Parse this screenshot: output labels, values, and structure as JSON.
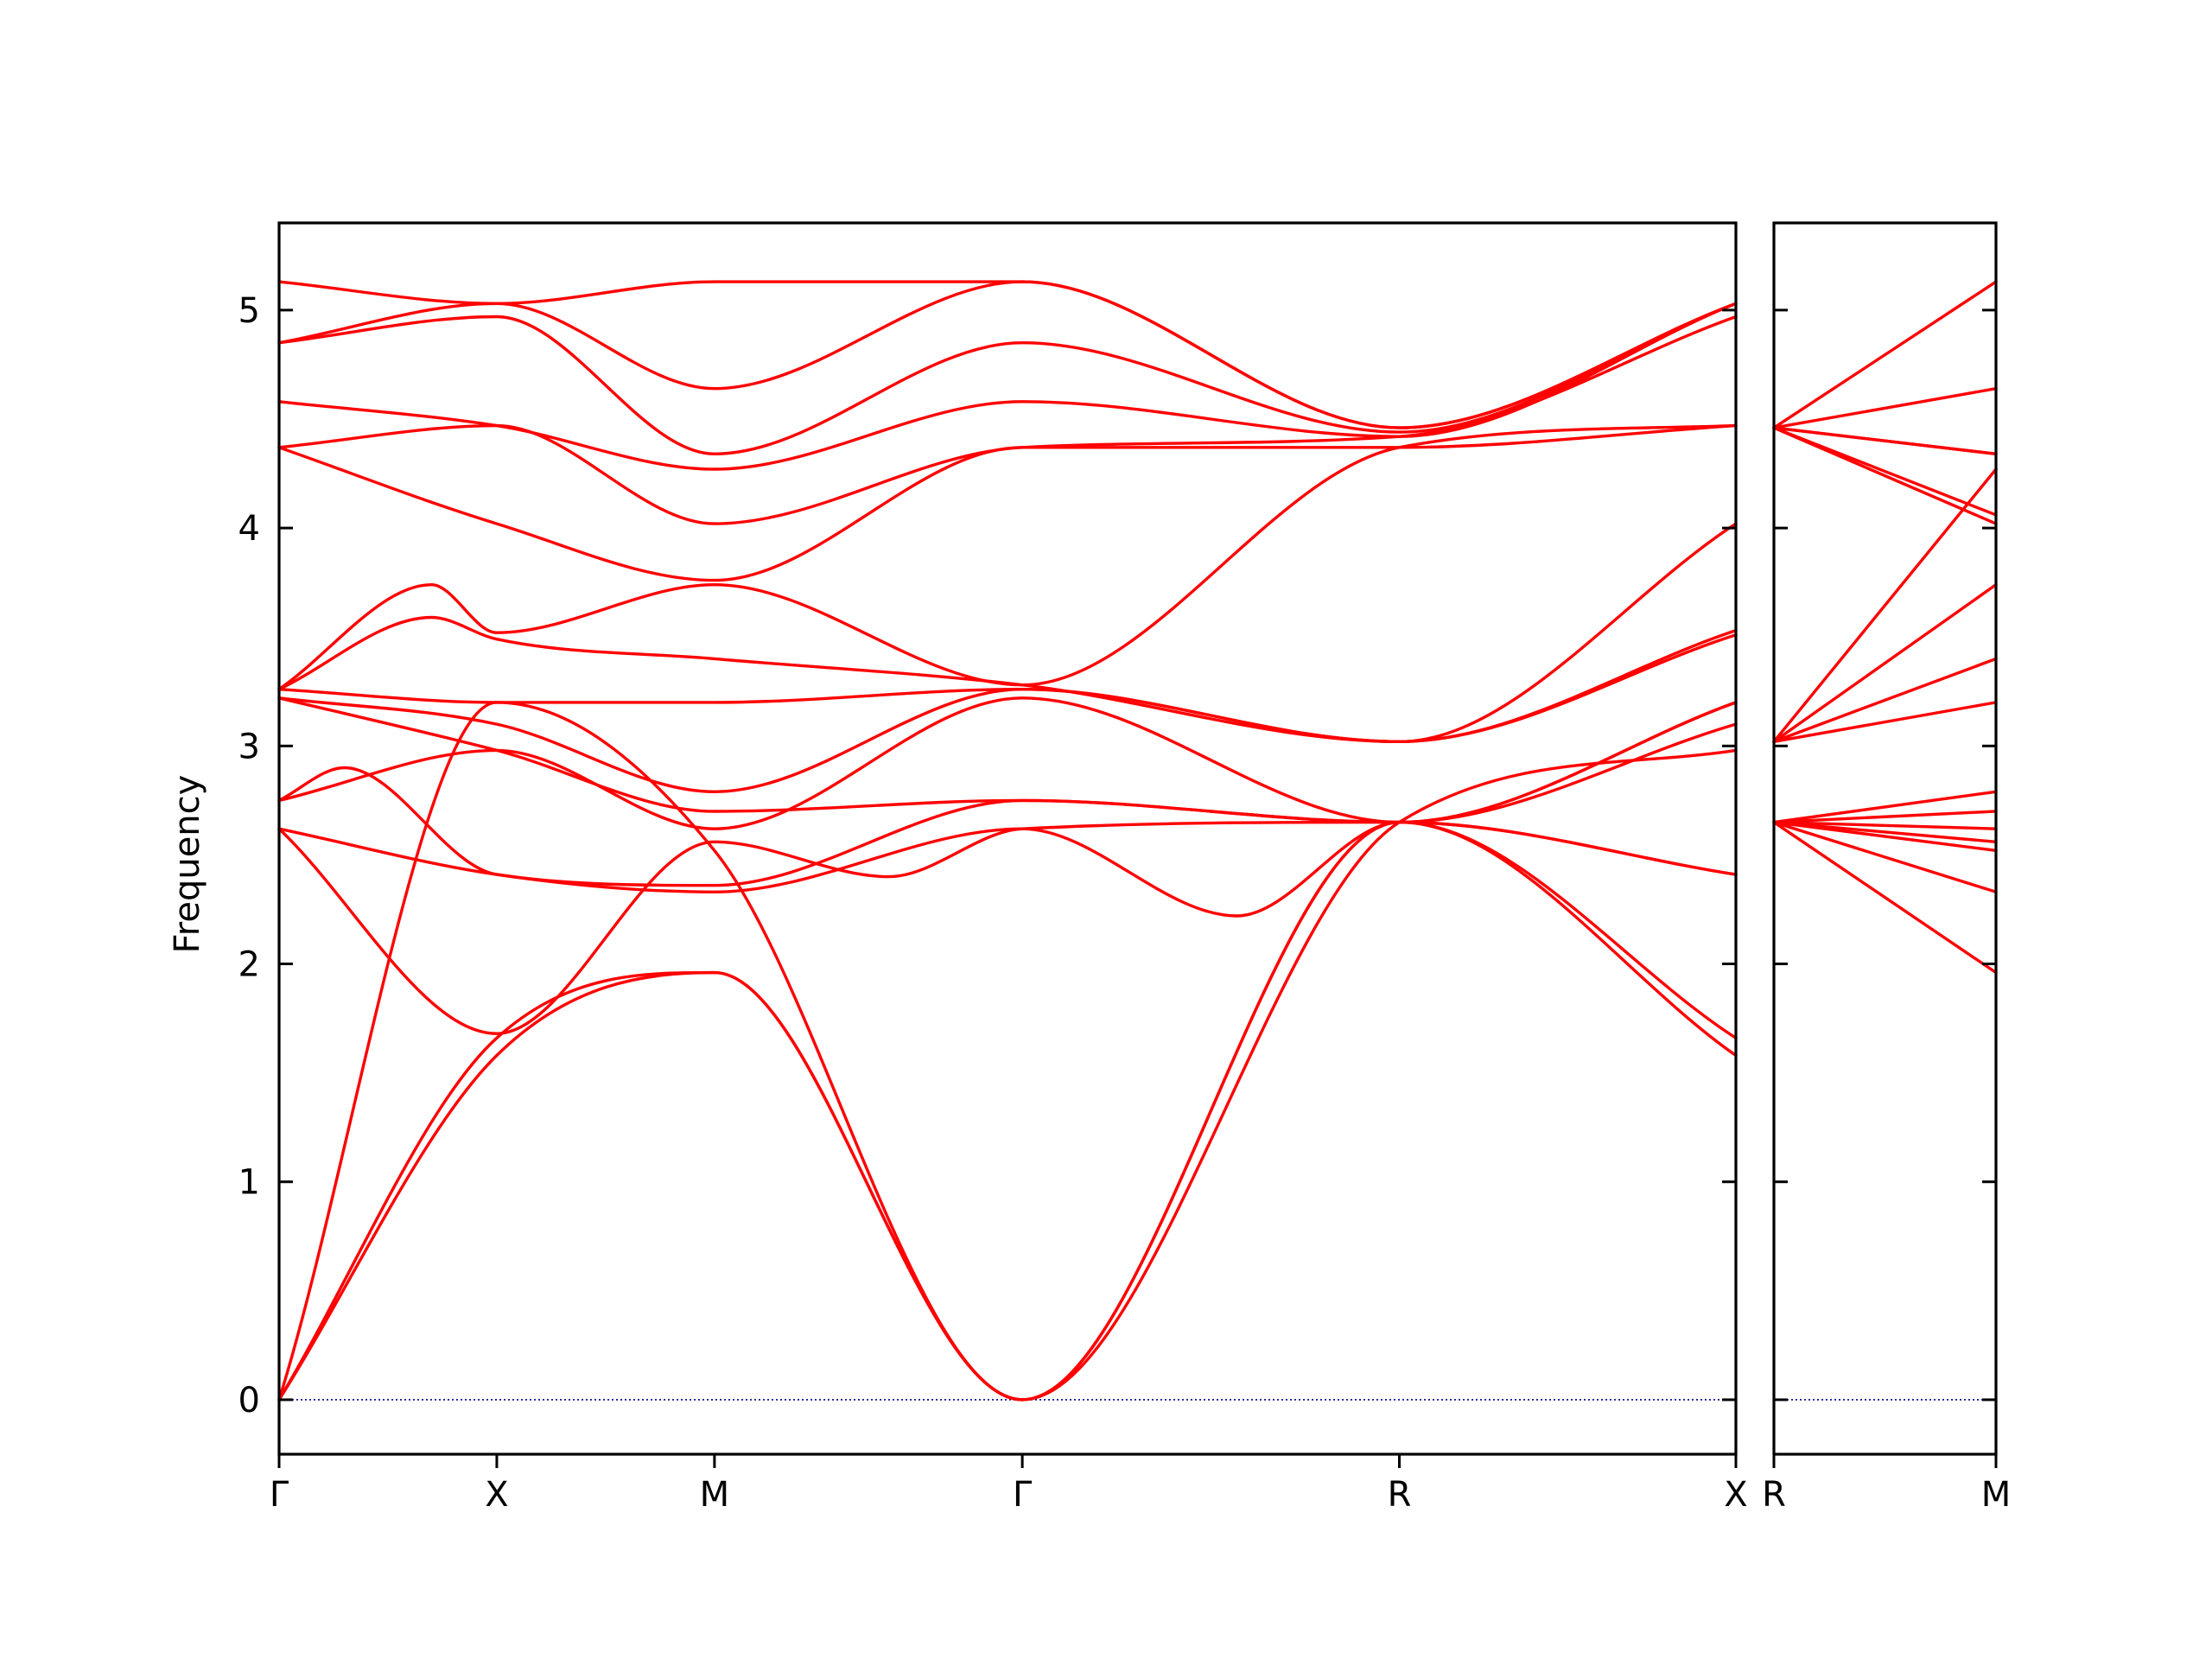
{
  "chart_data": {
    "type": "line",
    "ylabel": "Frequency",
    "ylim": [
      -0.25,
      5.4
    ],
    "yticks": [
      0,
      1,
      2,
      3,
      4,
      5
    ],
    "grid": false,
    "colors": {
      "bands": "#ff0000",
      "zero_line": "#00008b",
      "frame": "#000000"
    },
    "panels": [
      {
        "id": "main",
        "xlim": [
          0,
          3.346
        ],
        "kpoints": [
          {
            "label": "Γ",
            "x": 0
          },
          {
            "label": "X",
            "x": 0.5
          },
          {
            "label": "M",
            "x": 1.0
          },
          {
            "label": "Γ",
            "x": 1.707
          },
          {
            "label": "R",
            "x": 2.573
          },
          {
            "label": "X",
            "x": 3.346
          }
        ],
        "series": [
          {
            "x": [
              0,
              0.5,
              1.0,
              1.707,
              2.573,
              3.346
            ],
            "y": [
              0,
              1.58,
              1.96,
              0,
              2.65,
              1.58
            ]
          },
          {
            "x": [
              0,
              0.5,
              1.0,
              1.707,
              2.573,
              3.346
            ],
            "y": [
              0,
              1.66,
              1.96,
              0,
              2.65,
              1.66
            ]
          },
          {
            "x": [
              0,
              0.5,
              1.0,
              1.707,
              2.573,
              3.346
            ],
            "y": [
              0,
              3.2,
              2.52,
              0,
              2.65,
              2.98
            ]
          },
          {
            "x": [
              0,
              0.5,
              1.0,
              1.4,
              1.707,
              2.573,
              3.346
            ],
            "y": [
              2.62,
              1.68,
              2.56,
              2.4,
              2.62,
              2.65,
              2.41
            ]
          },
          {
            "x": [
              0,
              0.5,
              1.0,
              1.707,
              2.2,
              2.573,
              3.346
            ],
            "y": [
              2.62,
              2.41,
              2.33,
              2.62,
              2.22,
              2.65,
              2.41
            ]
          },
          {
            "x": [
              0,
              0.15,
              0.5,
              1.0,
              1.707,
              2.573,
              3.346
            ],
            "y": [
              2.75,
              2.9,
              2.41,
              2.36,
              2.75,
              2.65,
              3.1
            ]
          },
          {
            "x": [
              0,
              0.5,
              1.0,
              1.707,
              2.573,
              3.346
            ],
            "y": [
              2.75,
              2.98,
              2.62,
              3.22,
              2.65,
              3.2
            ]
          },
          {
            "x": [
              0,
              0.5,
              1.0,
              1.707,
              2.573,
              3.346
            ],
            "y": [
              3.22,
              2.98,
              2.7,
              2.75,
              2.65,
              3.2
            ]
          },
          {
            "x": [
              0,
              0.5,
              1.0,
              1.707,
              2.573,
              3.346
            ],
            "y": [
              3.22,
              3.1,
              2.79,
              3.26,
              3.02,
              3.51
            ]
          },
          {
            "x": [
              0,
              0.5,
              1.0,
              1.707,
              2.573,
              3.346
            ],
            "y": [
              3.26,
              3.2,
              3.2,
              3.26,
              3.02,
              3.53
            ]
          },
          {
            "x": [
              0,
              0.35,
              0.5,
              1.0,
              1.707,
              2.573,
              3.346
            ],
            "y": [
              3.26,
              3.59,
              3.49,
              3.4,
              3.28,
              3.02,
              4.02
            ]
          },
          {
            "x": [
              0,
              0.35,
              0.5,
              1.0,
              1.707,
              2.573,
              3.346
            ],
            "y": [
              3.26,
              3.74,
              3.52,
              3.74,
              3.28,
              4.37,
              4.47
            ]
          },
          {
            "x": [
              0,
              0.5,
              1.0,
              1.707,
              2.573,
              3.346
            ],
            "y": [
              4.37,
              4.02,
              3.76,
              4.37,
              4.37,
              4.47
            ]
          },
          {
            "x": [
              0,
              0.5,
              1.0,
              1.707,
              2.573,
              3.346
            ],
            "y": [
              4.37,
              4.47,
              4.02,
              4.37,
              4.42,
              4.97
            ]
          },
          {
            "x": [
              0,
              0.5,
              1.0,
              1.707,
              2.573,
              3.346
            ],
            "y": [
              4.58,
              4.47,
              4.27,
              4.58,
              4.42,
              5.03
            ]
          },
          {
            "x": [
              0,
              0.5,
              1.0,
              1.707,
              2.573,
              3.346
            ],
            "y": [
              4.85,
              4.97,
              4.34,
              4.85,
              4.44,
              5.03
            ]
          },
          {
            "x": [
              0,
              0.5,
              1.0,
              1.707,
              2.573,
              3.346
            ],
            "y": [
              4.85,
              5.03,
              4.64,
              5.13,
              4.46,
              5.03
            ]
          },
          {
            "x": [
              0,
              0.5,
              1.0,
              1.707,
              2.573,
              3.346
            ],
            "y": [
              5.13,
              5.03,
              5.13,
              5.13,
              4.46,
              5.03
            ]
          }
        ]
      },
      {
        "id": "right",
        "xlim": [
          0,
          0.5
        ],
        "kpoints": [
          {
            "label": "R",
            "x": 0
          },
          {
            "label": "M",
            "x": 0.5
          }
        ],
        "series": [
          {
            "x": [
              0,
              0.5
            ],
            "y": [
              2.65,
              1.96
            ]
          },
          {
            "x": [
              0,
              0.5
            ],
            "y": [
              2.65,
              2.33
            ]
          },
          {
            "x": [
              0,
              0.5
            ],
            "y": [
              2.65,
              2.52
            ]
          },
          {
            "x": [
              0,
              0.5
            ],
            "y": [
              2.65,
              2.56
            ]
          },
          {
            "x": [
              0,
              0.5
            ],
            "y": [
              2.65,
              2.62
            ]
          },
          {
            "x": [
              0,
              0.5
            ],
            "y": [
              2.65,
              2.7
            ]
          },
          {
            "x": [
              0,
              0.5
            ],
            "y": [
              2.65,
              2.79
            ]
          },
          {
            "x": [
              0,
              0.5
            ],
            "y": [
              3.02,
              3.2
            ]
          },
          {
            "x": [
              0,
              0.5
            ],
            "y": [
              3.02,
              3.4
            ]
          },
          {
            "x": [
              0,
              0.5
            ],
            "y": [
              3.02,
              3.74
            ]
          },
          {
            "x": [
              0,
              0.5
            ],
            "y": [
              3.02,
              4.27
            ]
          },
          {
            "x": [
              0,
              0.5
            ],
            "y": [
              4.46,
              4.02
            ]
          },
          {
            "x": [
              0,
              0.5
            ],
            "y": [
              4.46,
              4.06
            ]
          },
          {
            "x": [
              0,
              0.5
            ],
            "y": [
              4.46,
              4.34
            ]
          },
          {
            "x": [
              0,
              0.5
            ],
            "y": [
              4.46,
              4.34
            ]
          },
          {
            "x": [
              0,
              0.5
            ],
            "y": [
              4.46,
              4.64
            ]
          },
          {
            "x": [
              0,
              0.5
            ],
            "y": [
              4.46,
              5.13
            ]
          }
        ]
      }
    ]
  }
}
